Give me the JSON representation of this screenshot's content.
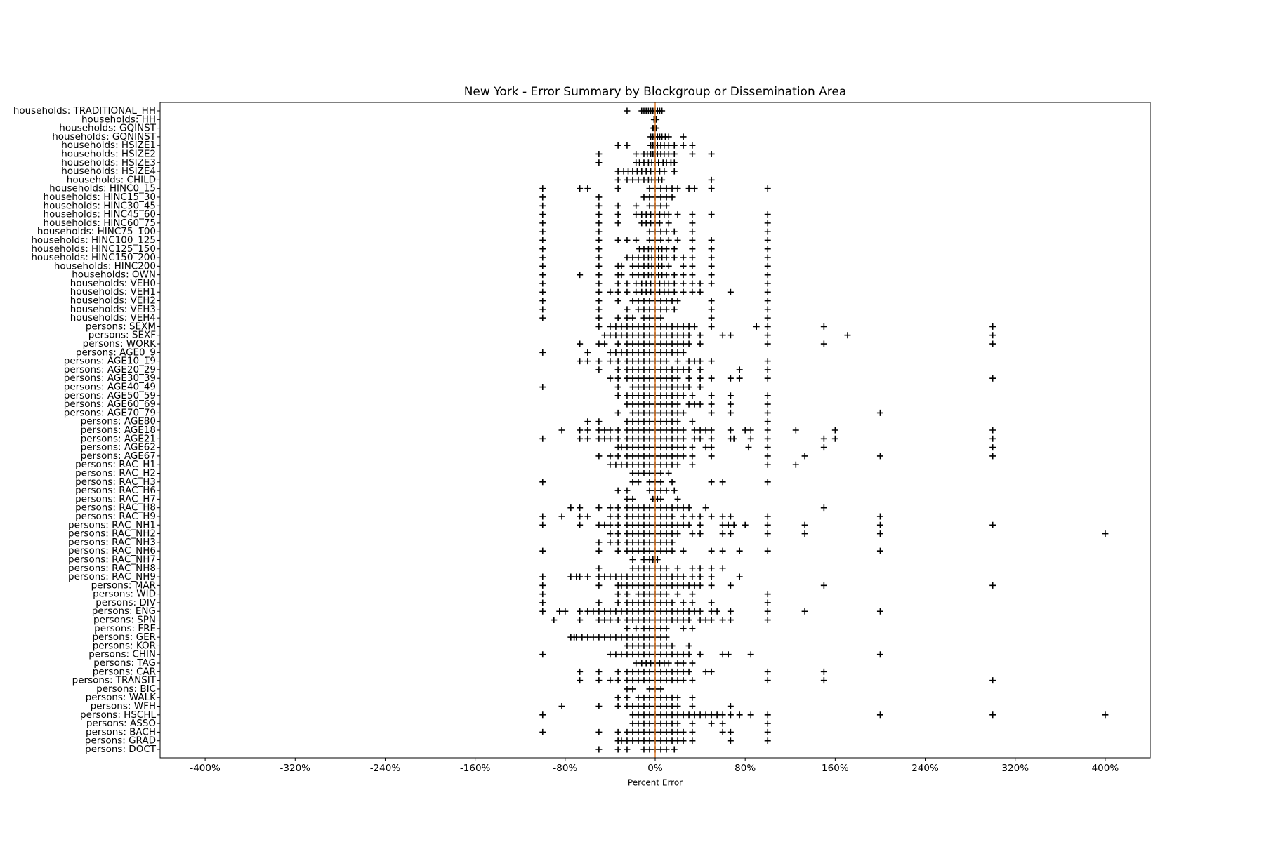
{
  "chart_data": {
    "type": "strip",
    "title": "New York - Error Summary by Blockgroup or Dissemination Area",
    "x_label": "Percent Error",
    "categories": [
      "households: TRADITIONAL_HH",
      "households: HH",
      "households: GQINST",
      "households: GQNINST",
      "households: HSIZE1",
      "households: HSIZE2",
      "households: HSIZE3",
      "households: HSIZE4",
      "households: CHILD",
      "households: HINC0_15",
      "households: HINC15_30",
      "households: HINC30_45",
      "households: HINC45_60",
      "households: HINC60_75",
      "households: HINC75_100",
      "households: HINC100_125",
      "households: HINC125_150",
      "households: HINC150_200",
      "households: HINC200",
      "households: OWN",
      "households: VEH0",
      "households: VEH1",
      "households: VEH2",
      "households: VEH3",
      "households: VEH4",
      "persons: SEXM",
      "persons: SEXF",
      "persons: WORK",
      "persons: AGE0_9",
      "persons: AGE10_19",
      "persons: AGE20_29",
      "persons: AGE30_39",
      "persons: AGE40_49",
      "persons: AGE50_59",
      "persons: AGE60_69",
      "persons: AGE70_79",
      "persons: AGE80",
      "persons: AGE18",
      "persons: AGE21",
      "persons: AGE62",
      "persons: AGE67",
      "persons: RAC_H1",
      "persons: RAC_H2",
      "persons: RAC_H3",
      "persons: RAC_H6",
      "persons: RAC_H7",
      "persons: RAC_H8",
      "persons: RAC_H9",
      "persons: RAC_NH1",
      "persons: RAC_NH2",
      "persons: RAC_NH3",
      "persons: RAC_NH6",
      "persons: RAC_NH7",
      "persons: RAC_NH8",
      "persons: RAC_NH9",
      "persons: MAR",
      "persons: WID",
      "persons: DIV",
      "persons: ENG",
      "persons: SPN",
      "persons: FRE",
      "persons: GER",
      "persons: KOR",
      "persons: CHIN",
      "persons: TAG",
      "persons: CAR",
      "persons: TRANSIT",
      "persons: BIC",
      "persons: WALK",
      "persons: WFH",
      "persons: HSCHL",
      "persons: ASSO",
      "persons: BACH",
      "persons: GRAD",
      "persons: DOCT"
    ],
    "values": [
      [
        -25,
        -12,
        -10,
        -8,
        -6,
        -4,
        -2,
        0,
        2,
        4,
        6
      ],
      [
        -1,
        0,
        1
      ],
      [
        -2,
        -1,
        0,
        1
      ],
      [
        -4,
        -2,
        0,
        2,
        4,
        6,
        9,
        12,
        25
      ],
      [
        -33,
        -25,
        -4,
        -2,
        0,
        2,
        5,
        8,
        12,
        17,
        25,
        33
      ],
      [
        -50,
        -17,
        -10,
        -7,
        -4,
        -2,
        0,
        2,
        5,
        8,
        12,
        17,
        33,
        50
      ],
      [
        -50,
        -17,
        -14,
        -10,
        -6,
        -3,
        0,
        3,
        7,
        10,
        14,
        17
      ],
      [
        -33,
        -28,
        -24,
        -20,
        -16,
        -12,
        -8,
        -4,
        0,
        4,
        8,
        17
      ],
      [
        -33,
        -25,
        -20,
        -15,
        -10,
        -6,
        -3,
        0,
        3,
        6,
        50
      ],
      [
        -100,
        -67,
        -60,
        -33,
        -5,
        0,
        5,
        10,
        15,
        20,
        30,
        35,
        50,
        100
      ],
      [
        -100,
        -50,
        -10,
        -5,
        0,
        5,
        10,
        15
      ],
      [
        -100,
        -50,
        -33,
        -17,
        -5,
        0,
        5,
        10
      ],
      [
        -100,
        -50,
        -33,
        -17,
        -12,
        -8,
        -4,
        0,
        4,
        8,
        12,
        20,
        33,
        50,
        100
      ],
      [
        -100,
        -50,
        -33,
        -12,
        -8,
        -4,
        0,
        4,
        12,
        33,
        100
      ],
      [
        -100,
        -50,
        -5,
        0,
        5,
        10,
        17,
        33,
        100
      ],
      [
        -100,
        -50,
        -33,
        -25,
        -17,
        -5,
        0,
        5,
        12,
        20,
        33,
        50,
        100
      ],
      [
        -100,
        -50,
        -14,
        -10,
        -6,
        -3,
        0,
        3,
        6,
        10,
        17,
        33,
        50,
        100
      ],
      [
        -100,
        -50,
        -25,
        -20,
        -15,
        -10,
        -6,
        -3,
        0,
        3,
        6,
        10,
        17,
        25,
        33,
        50,
        100
      ],
      [
        -100,
        -50,
        -33,
        -30,
        -20,
        -15,
        -10,
        -6,
        -3,
        0,
        3,
        6,
        12,
        25,
        33,
        50,
        100
      ],
      [
        -100,
        -67,
        -50,
        -33,
        -30,
        -20,
        -15,
        -10,
        -6,
        -3,
        0,
        3,
        6,
        10,
        17,
        25,
        33,
        50,
        100
      ],
      [
        -100,
        -50,
        -33,
        -25,
        -17,
        -12,
        -8,
        -4,
        0,
        4,
        8,
        12,
        17,
        25,
        33,
        40,
        50,
        100
      ],
      [
        -100,
        -50,
        -40,
        -33,
        -25,
        -17,
        -12,
        -8,
        -4,
        0,
        4,
        8,
        12,
        17,
        25,
        33,
        40,
        67,
        100
      ],
      [
        -100,
        -50,
        -33,
        -20,
        -15,
        -10,
        -5,
        0,
        5,
        10,
        15,
        20,
        50,
        100
      ],
      [
        -100,
        -50,
        -25,
        -15,
        -10,
        -5,
        0,
        5,
        10,
        17,
        50,
        100
      ],
      [
        -100,
        -50,
        -33,
        -25,
        -20,
        -10,
        -5,
        0,
        5,
        50,
        100
      ],
      [
        -50,
        -40,
        -35,
        -30,
        -25,
        -20,
        -15,
        -10,
        -5,
        0,
        5,
        10,
        15,
        20,
        25,
        30,
        35,
        50,
        90,
        100,
        150,
        300
      ],
      [
        -45,
        -40,
        -35,
        -30,
        -25,
        -20,
        -15,
        -10,
        -5,
        0,
        5,
        10,
        15,
        20,
        25,
        30,
        40,
        60,
        67,
        100,
        171,
        300
      ],
      [
        -67,
        -50,
        -45,
        -33,
        -25,
        -20,
        -15,
        -10,
        -5,
        0,
        5,
        10,
        15,
        20,
        25,
        30,
        40,
        100,
        150,
        300
      ],
      [
        -100,
        -60,
        -40,
        -35,
        -30,
        -25,
        -20,
        -15,
        -10,
        -5,
        0,
        5,
        10,
        15,
        20,
        25
      ],
      [
        -67,
        -60,
        -50,
        -40,
        -33,
        -25,
        -20,
        -15,
        -10,
        -5,
        0,
        5,
        10,
        20,
        30,
        35,
        40,
        50,
        100
      ],
      [
        -50,
        -33,
        -25,
        -20,
        -15,
        -10,
        -5,
        0,
        5,
        10,
        15,
        20,
        25,
        30,
        40,
        75,
        100
      ],
      [
        -40,
        -33,
        -25,
        -20,
        -15,
        -10,
        -5,
        0,
        5,
        10,
        15,
        20,
        30,
        40,
        50,
        67,
        75,
        100,
        300
      ],
      [
        -100,
        -33,
        -20,
        -15,
        -10,
        -5,
        0,
        5,
        10,
        15,
        20,
        25,
        30,
        40
      ],
      [
        -33,
        -25,
        -20,
        -15,
        -10,
        -5,
        0,
        5,
        10,
        15,
        20,
        25,
        33,
        50,
        67,
        100
      ],
      [
        -25,
        -20,
        -15,
        -10,
        -5,
        0,
        5,
        10,
        15,
        20,
        30,
        35,
        40,
        50,
        67,
        100
      ],
      [
        -33,
        -20,
        -15,
        -10,
        -5,
        0,
        5,
        10,
        15,
        20,
        25,
        50,
        67,
        100,
        200
      ],
      [
        -60,
        -50,
        -25,
        -20,
        -15,
        -10,
        -5,
        0,
        5,
        10,
        15,
        20,
        33,
        100
      ],
      [
        -83,
        -67,
        -60,
        -50,
        -45,
        -40,
        -33,
        -25,
        -20,
        -15,
        -10,
        -5,
        0,
        5,
        10,
        15,
        20,
        25,
        35,
        40,
        45,
        50,
        67,
        80,
        85,
        100,
        125,
        160,
        300
      ],
      [
        -100,
        -67,
        -60,
        -50,
        -45,
        -40,
        -33,
        -25,
        -20,
        -15,
        -10,
        -5,
        0,
        5,
        10,
        15,
        20,
        25,
        35,
        40,
        50,
        67,
        70,
        85,
        100,
        150,
        160,
        300
      ],
      [
        -33,
        -30,
        -25,
        -20,
        -15,
        -10,
        -5,
        0,
        5,
        10,
        15,
        20,
        25,
        33,
        45,
        50,
        83,
        100,
        150,
        300
      ],
      [
        -50,
        -40,
        -33,
        -25,
        -20,
        -15,
        -10,
        -5,
        0,
        5,
        10,
        15,
        20,
        25,
        33,
        50,
        100,
        133,
        200,
        300
      ],
      [
        -40,
        -35,
        -30,
        -25,
        -20,
        -15,
        -10,
        -5,
        0,
        5,
        10,
        15,
        20,
        33,
        100,
        125
      ],
      [
        -20,
        -15,
        -10,
        -5,
        0,
        5,
        12
      ],
      [
        -100,
        -20,
        -15,
        -5,
        0,
        5,
        15,
        50,
        60,
        100
      ],
      [
        -33,
        -25,
        -5,
        0,
        5,
        10,
        17
      ],
      [
        -25,
        -20,
        -2,
        0,
        2,
        5,
        20
      ],
      [
        -75,
        -67,
        -50,
        -40,
        -33,
        -25,
        -20,
        -15,
        -10,
        -5,
        0,
        5,
        10,
        15,
        20,
        25,
        30,
        45,
        150
      ],
      [
        -100,
        -83,
        -67,
        -60,
        -40,
        -33,
        -25,
        -20,
        -15,
        -10,
        -5,
        0,
        5,
        10,
        15,
        25,
        33,
        40,
        50,
        60,
        67,
        100,
        200
      ],
      [
        -100,
        -67,
        -50,
        -45,
        -40,
        -33,
        -25,
        -20,
        -15,
        -10,
        -5,
        0,
        5,
        10,
        15,
        20,
        25,
        30,
        40,
        60,
        65,
        70,
        80,
        100,
        133,
        200,
        300
      ],
      [
        -40,
        -33,
        -25,
        -20,
        -15,
        -10,
        -5,
        0,
        5,
        10,
        15,
        20,
        33,
        40,
        60,
        67,
        100,
        133,
        200,
        400
      ],
      [
        -50,
        -40,
        -33,
        -25,
        -20,
        -15,
        -10,
        -5,
        0,
        5,
        10,
        15
      ],
      [
        -100,
        -50,
        -33,
        -25,
        -20,
        -15,
        -10,
        -5,
        0,
        5,
        10,
        15,
        25,
        50,
        60,
        75,
        100,
        200
      ],
      [
        -20,
        -10,
        -5,
        -2,
        0,
        2
      ],
      [
        -50,
        -20,
        -15,
        -10,
        -5,
        0,
        5,
        10,
        20,
        33,
        40,
        50,
        60
      ],
      [
        -100,
        -75,
        -70,
        -67,
        -60,
        -50,
        -45,
        -40,
        -35,
        -30,
        -25,
        -20,
        -15,
        -10,
        -5,
        0,
        5,
        10,
        15,
        20,
        25,
        33,
        40,
        50,
        75
      ],
      [
        -100,
        -50,
        -33,
        -30,
        -25,
        -20,
        -15,
        -10,
        -5,
        0,
        5,
        10,
        15,
        20,
        25,
        30,
        35,
        40,
        50,
        67,
        150,
        300
      ],
      [
        -100,
        -33,
        -25,
        -15,
        -10,
        -5,
        0,
        5,
        10,
        20,
        33,
        100
      ],
      [
        -100,
        -50,
        -33,
        -25,
        -20,
        -15,
        -10,
        -5,
        0,
        5,
        10,
        15,
        25,
        33,
        50,
        100
      ],
      [
        -100,
        -85,
        -80,
        -67,
        -60,
        -55,
        -50,
        -45,
        -40,
        -35,
        -30,
        -25,
        -20,
        -15,
        -10,
        -5,
        0,
        5,
        10,
        15,
        20,
        25,
        30,
        35,
        40,
        50,
        55,
        67,
        100,
        133,
        200
      ],
      [
        -90,
        -67,
        -50,
        -45,
        -40,
        -33,
        -25,
        -20,
        -15,
        -10,
        -5,
        0,
        5,
        10,
        15,
        20,
        25,
        30,
        40,
        45,
        50,
        60,
        67,
        100
      ],
      [
        -25,
        -17,
        -10,
        -5,
        0,
        5,
        10,
        25,
        33
      ],
      [
        -75,
        -72,
        -70,
        -65,
        -60,
        -55,
        -50,
        -45,
        -40,
        -35,
        -30,
        -25,
        -20,
        -15,
        -10,
        -5,
        0,
        5,
        10
      ],
      [
        -25,
        -20,
        -15,
        -10,
        -5,
        0,
        5,
        10,
        15,
        30
      ],
      [
        -100,
        -40,
        -35,
        -30,
        -25,
        -20,
        -15,
        -10,
        -5,
        0,
        5,
        10,
        15,
        20,
        25,
        30,
        40,
        60,
        65,
        85,
        200
      ],
      [
        -17,
        -12,
        -8,
        -4,
        0,
        4,
        8,
        12,
        20,
        25,
        33
      ],
      [
        -67,
        -50,
        -33,
        -25,
        -20,
        -15,
        -10,
        -5,
        0,
        5,
        10,
        15,
        20,
        25,
        30,
        45,
        50,
        100,
        150
      ],
      [
        -67,
        -50,
        -40,
        -33,
        -25,
        -20,
        -15,
        -10,
        -5,
        0,
        5,
        10,
        15,
        20,
        25,
        33,
        100,
        150,
        300
      ],
      [
        -25,
        -20,
        -5,
        0,
        5
      ],
      [
        -33,
        -25,
        -15,
        -10,
        -5,
        0,
        5,
        10,
        15,
        20,
        33
      ],
      [
        -83,
        -50,
        -33,
        -25,
        -20,
        -15,
        -10,
        -5,
        0,
        5,
        10,
        15,
        20,
        33,
        67
      ],
      [
        -100,
        -20,
        -15,
        -10,
        -5,
        0,
        5,
        10,
        15,
        20,
        25,
        30,
        35,
        40,
        45,
        50,
        55,
        60,
        67,
        75,
        85,
        100,
        200,
        300,
        400
      ],
      [
        -20,
        -15,
        -10,
        -5,
        0,
        5,
        10,
        15,
        20,
        33,
        50,
        60,
        100
      ],
      [
        -100,
        -50,
        -33,
        -25,
        -20,
        -15,
        -10,
        -5,
        0,
        5,
        10,
        15,
        20,
        25,
        33,
        60,
        67,
        100
      ],
      [
        -33,
        -30,
        -25,
        -20,
        -15,
        -10,
        -5,
        0,
        5,
        10,
        15,
        20,
        25,
        33,
        67,
        100
      ],
      [
        -50,
        -33,
        -25,
        -10,
        -5,
        0,
        5,
        10,
        17
      ]
    ],
    "color": "#000000",
    "reference_line": {
      "value": 0,
      "color": "#e07b28"
    },
    "xlim": [
      -440,
      440
    ],
    "xticks": [
      {
        "value": -400,
        "label": "-400%"
      },
      {
        "value": -320,
        "label": "-320%"
      },
      {
        "value": -240,
        "label": "-240%"
      },
      {
        "value": -160,
        "label": "-160%"
      },
      {
        "value": -80,
        "label": "-80%"
      },
      {
        "value": 0,
        "label": "0%"
      },
      {
        "value": 80,
        "label": "80%"
      },
      {
        "value": 160,
        "label": "160%"
      },
      {
        "value": 240,
        "label": "240%"
      },
      {
        "value": 320,
        "label": "320%"
      },
      {
        "value": 400,
        "label": "400%"
      }
    ]
  }
}
